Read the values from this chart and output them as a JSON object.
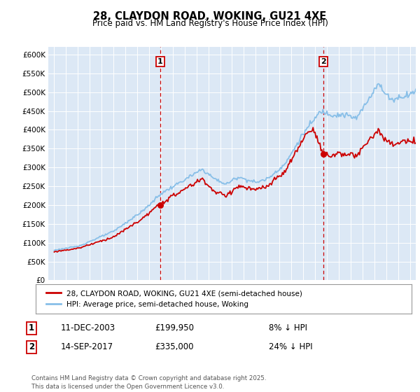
{
  "title": "28, CLAYDON ROAD, WOKING, GU21 4XE",
  "subtitle": "Price paid vs. HM Land Registry's House Price Index (HPI)",
  "legend_house": "28, CLAYDON ROAD, WOKING, GU21 4XE (semi-detached house)",
  "legend_hpi": "HPI: Average price, semi-detached house, Woking",
  "annotation1_date": "11-DEC-2003",
  "annotation1_price": "£199,950",
  "annotation1_hpi": "8% ↓ HPI",
  "annotation2_date": "14-SEP-2017",
  "annotation2_price": "£335,000",
  "annotation2_hpi": "24% ↓ HPI",
  "footer": "Contains HM Land Registry data © Crown copyright and database right 2025.\nThis data is licensed under the Open Government Licence v3.0.",
  "house_color": "#cc0000",
  "hpi_color": "#88bfe8",
  "annotation_color": "#cc0000",
  "plot_bg_color": "#dce8f5",
  "ylim": [
    0,
    620000
  ],
  "yticks": [
    0,
    50000,
    100000,
    150000,
    200000,
    250000,
    300000,
    350000,
    400000,
    450000,
    500000,
    550000,
    600000
  ],
  "ytick_labels": [
    "£0",
    "£50K",
    "£100K",
    "£150K",
    "£200K",
    "£250K",
    "£300K",
    "£350K",
    "£400K",
    "£450K",
    "£500K",
    "£550K",
    "£600K"
  ],
  "xlim_start": 1994.5,
  "xlim_end": 2025.5,
  "sale1_x": 2003.95,
  "sale1_y": 199950,
  "sale2_x": 2017.72,
  "sale2_y": 335000,
  "vline1_x": 2003.95,
  "vline2_x": 2017.72,
  "hpi_milestones": {
    "1995.0": 80000,
    "1997.0": 90000,
    "2000.0": 130000,
    "2002.5": 185000,
    "2004.0": 230000,
    "2007.5": 295000,
    "2008.5": 270000,
    "2009.5": 255000,
    "2010.5": 275000,
    "2012.0": 260000,
    "2013.0": 270000,
    "2014.5": 310000,
    "2016.0": 390000,
    "2017.5": 450000,
    "2018.5": 440000,
    "2019.5": 440000,
    "2020.5": 430000,
    "2021.5": 480000,
    "2022.3": 525000,
    "2022.8": 500000,
    "2023.5": 480000,
    "2024.5": 490000,
    "2025.3": 500000
  },
  "house_milestones": {
    "1995.0": 76000,
    "1997.0": 85000,
    "2000.0": 115000,
    "2002.5": 165000,
    "2004.0": 205000,
    "2007.5": 270000,
    "2008.5": 235000,
    "2009.5": 225000,
    "2010.5": 250000,
    "2012.0": 240000,
    "2013.0": 250000,
    "2014.5": 290000,
    "2016.0": 375000,
    "2016.5": 400000,
    "2017.0": 395000,
    "2017.72": 335000,
    "2018.5": 330000,
    "2019.0": 340000,
    "2019.5": 335000,
    "2020.5": 330000,
    "2021.5": 370000,
    "2022.3": 400000,
    "2022.8": 375000,
    "2023.5": 360000,
    "2024.5": 370000,
    "2025.3": 365000
  }
}
